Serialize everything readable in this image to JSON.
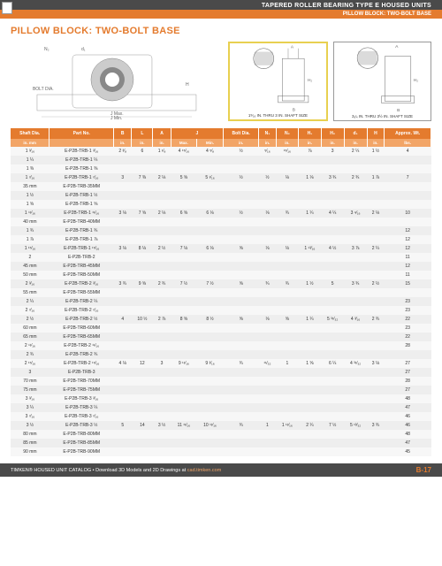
{
  "header": {
    "top": "TAPERED ROLLER BEARING TYPE E HOUSED UNITS",
    "sub": "PILLOW BLOCK: TWO-BOLT BASE"
  },
  "title": "PILLOW BLOCK: TWO-BOLT BASE",
  "diagram_captions": {
    "d2": "1⁵⁄₁₆ IN. THRU 3 IN. SHAFT SIZE",
    "d3": "3₁⁄₄ IN. THRU 3½ IN. SHAFT SIZE"
  },
  "table": {
    "head": [
      "Shaft Dia.",
      "Part No.",
      "B",
      "L",
      "A",
      "J Max.",
      "J Min.",
      "Bolt Dia.",
      "N₁",
      "N₂",
      "H₁",
      "H₂",
      "d₁",
      "H",
      "Approx. Wt."
    ],
    "unit": [
      "in.\nmm",
      "",
      "in.",
      "in.",
      "in.",
      "in.",
      "in.",
      "in.",
      "in.",
      "in.",
      "in.",
      "in.",
      "in.",
      "in.",
      "lbs."
    ],
    "rows": [
      [
        "1 ³⁄₁₆",
        "E-P2B-TRB-1 ³⁄₁₆",
        "2 ³⁄₈",
        "6",
        "1 ¹⁄₈",
        "4 ¹⁵⁄₁₆",
        "4 ⁵⁄₈",
        "½",
        "⁵⁄₁₆",
        "¹⁵⁄₁₆",
        "⅞",
        "3",
        "2 ¼",
        "1 ½",
        "4"
      ],
      [
        "1 ¼",
        "E-P2B-TRB-1 ¼",
        "",
        "",
        "",
        "",
        "",
        "",
        "",
        "",
        "",
        "",
        "",
        "",
        ""
      ],
      [
        "1 ⅜",
        "E-P2B-TRB-1 ⅜",
        "",
        "",
        "",
        "",
        "",
        "",
        "",
        "",
        "",
        "",
        "",
        "",
        ""
      ],
      [
        "1 ⁷⁄₁₆",
        "E-P2B-TRB-1 ⁷⁄₁₆",
        "3",
        "7 ⅜",
        "2 ⅛",
        "5 ⅝",
        "5 ¹⁄₁₆",
        "½",
        "½",
        "⅛",
        "1 ⅛",
        "3 ¾",
        "2 ¾",
        "1 ⅞",
        "7"
      ],
      [
        "35 mm",
        "E-P2B-TRB-35MM",
        "",
        "",
        "",
        "",
        "",
        "",
        "",
        "",
        "",
        "",
        "",
        "",
        ""
      ],
      [
        "1 ½",
        "E-P2B-TRB-1 ½",
        "",
        "",
        "",
        "",
        "",
        "",
        "",
        "",
        "",
        "",
        "",
        "",
        ""
      ],
      [
        "1 ⅝",
        "E-P2B-TRB-1 ⅝",
        "",
        "",
        "",
        "",
        "",
        "",
        "",
        "",
        "",
        "",
        "",
        "",
        ""
      ],
      [
        "1 ¹¹⁄₁₆",
        "E-P2B-TRB-1 ¹¹⁄₁₆",
        "3 ⅛",
        "7 ⅝",
        "2 ⅛",
        "6 ⅝",
        "6 ⅛",
        "½",
        "⅛",
        "¾",
        "1 ¼",
        "4 ¼",
        "3 ⁹⁄₁₆",
        "2 ⅛",
        "10"
      ],
      [
        "40 mm",
        "E-P2B-TRB-40MM",
        "",
        "",
        "",
        "",
        "",
        "",
        "",
        "",
        "",
        "",
        "",
        "",
        ""
      ],
      [
        "1 ¾",
        "E-P2B-TRB-1 ¾",
        "",
        "",
        "",
        "",
        "",
        "",
        "",
        "",
        "",
        "",
        "",
        "",
        "12"
      ],
      [
        "1 ⅞",
        "E-P2B-TRB-1 ⅞",
        "",
        "",
        "",
        "",
        "",
        "",
        "",
        "",
        "",
        "",
        "",
        "",
        "12"
      ],
      [
        "1 ¹⁵⁄₁₆",
        "E-P2B-TRB-1 ¹⁵⁄₁₆",
        "3 ⅛",
        "8 ⅛",
        "2 ½",
        "7 ⅛",
        "6 ⅛",
        "⅝",
        "⅛",
        "⅛",
        "1 ¹³⁄₁₆",
        "4 ½",
        "3 ⅞",
        "2 ¼",
        "12"
      ],
      [
        "2",
        "E-P2B-TRB-2",
        "",
        "",
        "",
        "",
        "",
        "",
        "",
        "",
        "",
        "",
        "",
        "",
        "11"
      ],
      [
        "45 mm",
        "E-P2B-TRB-45MM",
        "",
        "",
        "",
        "",
        "",
        "",
        "",
        "",
        "",
        "",
        "",
        "",
        "12"
      ],
      [
        "50 mm",
        "E-P2B-TRB-50MM",
        "",
        "",
        "",
        "",
        "",
        "",
        "",
        "",
        "",
        "",
        "",
        "",
        "11"
      ],
      [
        "2 ³⁄₁₆",
        "E-P2B-TRB-2 ³⁄₁₆",
        "3 ¾",
        "9 ⅝",
        "2 ¾",
        "7 ½",
        "7 ½",
        "⅝",
        "¾",
        "¾",
        "1 ½",
        "5",
        "3 ¾",
        "2 ½",
        "15"
      ],
      [
        "55 mm",
        "E-P2B-TRB-55MM",
        "",
        "",
        "",
        "",
        "",
        "",
        "",
        "",
        "",
        "",
        "",
        "",
        ""
      ],
      [
        "2 ¼",
        "E-P2B-TRB-2 ¼",
        "",
        "",
        "",
        "",
        "",
        "",
        "",
        "",
        "",
        "",
        "",
        "",
        "23"
      ],
      [
        "2 ⁷⁄₁₆",
        "E-P2B-TRB-2 ⁷⁄₁₆",
        "",
        "",
        "",
        "",
        "",
        "",
        "",
        "",
        "",
        "",
        "",
        "",
        "23"
      ],
      [
        "2 ½",
        "E-P2B-TRB-2 ½",
        "4",
        "10 ½",
        "2 ⅞",
        "8 ⅝",
        "8 ½",
        "⅝",
        "⅛",
        "⅝",
        "1 ¼",
        "5 ³¹⁄₃₂",
        "4 ³⁄₁₆",
        "2 ¾",
        "22"
      ],
      [
        "60 mm",
        "E-P2B-TRB-60MM",
        "",
        "",
        "",
        "",
        "",
        "",
        "",
        "",
        "",
        "",
        "",
        "",
        "23"
      ],
      [
        "65 mm",
        "E-P2B-TRB-65MM",
        "",
        "",
        "",
        "",
        "",
        "",
        "",
        "",
        "",
        "",
        "",
        "",
        "22"
      ],
      [
        "2 ¹¹⁄₁₆",
        "E-P2B-TRB-2 ¹¹⁄₁₆",
        "",
        "",
        "",
        "",
        "",
        "",
        "",
        "",
        "",
        "",
        "",
        "",
        "28"
      ],
      [
        "2 ¾",
        "E-P2B-TRB-2 ¾",
        "",
        "",
        "",
        "",
        "",
        "",
        "",
        "",
        "",
        "",
        "",
        "",
        ""
      ],
      [
        "2 ¹⁵⁄₁₆",
        "E-P2B-TRB-2 ¹⁵⁄₁₆",
        "4 ⅛",
        "12",
        "3",
        "9 ¹¹⁄₁₆",
        "9 ³⁄₁₆",
        "¾",
        "¹¹⁄₃₂",
        "1",
        "1 ⅝",
        "6 ¼",
        "4 ³¹⁄₃₂",
        "3 ⅛",
        "27"
      ],
      [
        "3",
        "E-P2B-TRB-3",
        "",
        "",
        "",
        "",
        "",
        "",
        "",
        "",
        "",
        "",
        "",
        "",
        "27"
      ],
      [
        "70 mm",
        "E-P2B-TRB-70MM",
        "",
        "",
        "",
        "",
        "",
        "",
        "",
        "",
        "",
        "",
        "",
        "",
        "28"
      ],
      [
        "75 mm",
        "E-P2B-TRB-75MM",
        "",
        "",
        "",
        "",
        "",
        "",
        "",
        "",
        "",
        "",
        "",
        "",
        "27"
      ],
      [
        "3 ³⁄₁₆",
        "E-P2B-TRB-3 ³⁄₁₆",
        "",
        "",
        "",
        "",
        "",
        "",
        "",
        "",
        "",
        "",
        "",
        "",
        "48"
      ],
      [
        "3 ¼",
        "E-P2B-TRB-3 ¼",
        "",
        "",
        "",
        "",
        "",
        "",
        "",
        "",
        "",
        "",
        "",
        "",
        "47"
      ],
      [
        "3 ⁷⁄₁₆",
        "E-P2B-TRB-3 ⁷⁄₁₆",
        "",
        "",
        "",
        "",
        "",
        "",
        "",
        "",
        "",
        "",
        "",
        "",
        "46"
      ],
      [
        "3 ½",
        "E-P2B-TRB-3 ½",
        "5",
        "14",
        "3 ½",
        "11 ¹¹⁄₁₆",
        "10 ¹¹⁄₁₆",
        "¾",
        "1",
        "1 ¹¹⁄₁₆",
        "2 ¼",
        "7 ½",
        "5 ¹³⁄₃₂",
        "3 ¾",
        "46"
      ],
      [
        "80 mm",
        "E-P2B-TRB-80MM",
        "",
        "",
        "",
        "",
        "",
        "",
        "",
        "",
        "",
        "",
        "",
        "",
        "48"
      ],
      [
        "85 mm",
        "E-P2B-TRB-85MM",
        "",
        "",
        "",
        "",
        "",
        "",
        "",
        "",
        "",
        "",
        "",
        "",
        "47"
      ],
      [
        "90 mm",
        "E-P2B-TRB-90MM",
        "",
        "",
        "",
        "",
        "",
        "",
        "",
        "",
        "",
        "",
        "",
        "",
        "45"
      ]
    ]
  },
  "footer": {
    "text": "TIMKEN® HOUSED UNIT CATALOG • Download 3D Models and 2D Drawings at",
    "link": "cad.timken.com",
    "page": "B-17"
  }
}
